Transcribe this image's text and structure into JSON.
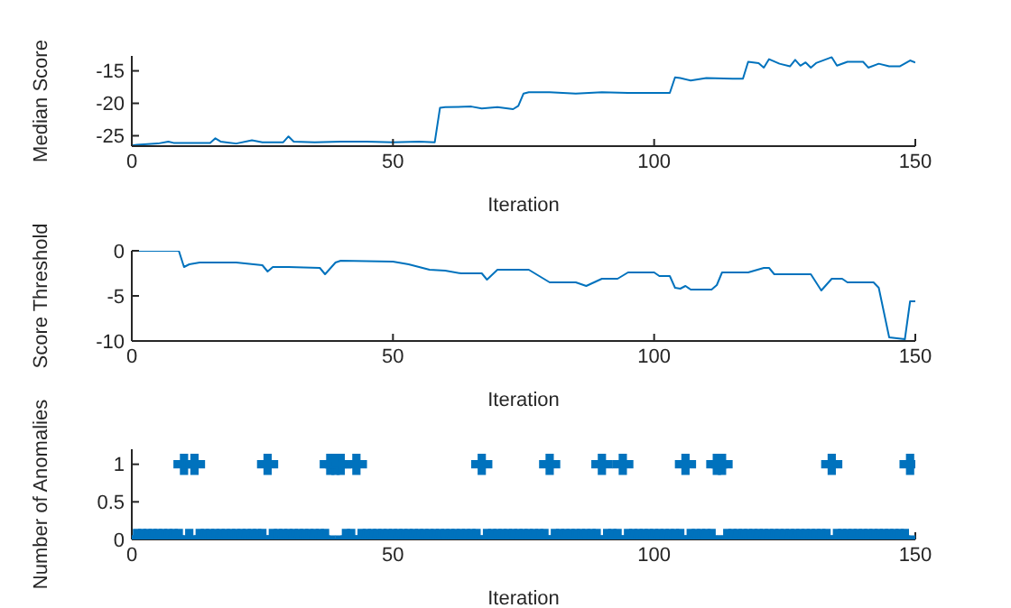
{
  "chart_data": [
    {
      "type": "line",
      "xlabel": "Iteration",
      "ylabel": "Median Score",
      "xlim": [
        0,
        150
      ],
      "xticks": [
        0,
        50,
        100,
        150
      ],
      "ylim": [
        -26.6,
        -12.7
      ],
      "yticks": [
        -25,
        -20,
        -15
      ],
      "series": [
        {
          "color": "#0072bd",
          "x": [
            0,
            1,
            5,
            7,
            8,
            15,
            16,
            17,
            20,
            23,
            25,
            29,
            30,
            31,
            35,
            40,
            45,
            50,
            55,
            58,
            59,
            60,
            65,
            67,
            70,
            73,
            74,
            75,
            76,
            80,
            85,
            90,
            95,
            100,
            103,
            104,
            105,
            107,
            110,
            115,
            117,
            118,
            120,
            121,
            122,
            124,
            126,
            127,
            128,
            129,
            130,
            131,
            134,
            135,
            137,
            140,
            141,
            143,
            145,
            147,
            149,
            150
          ],
          "values": [
            -26.5,
            -26.4,
            -26.2,
            -25.9,
            -26.1,
            -26.1,
            -25.4,
            -25.9,
            -26.2,
            -25.7,
            -26.0,
            -26.0,
            -25.1,
            -25.9,
            -26.0,
            -25.9,
            -25.9,
            -26.0,
            -25.9,
            -26.0,
            -20.7,
            -20.6,
            -20.5,
            -20.8,
            -20.6,
            -20.9,
            -20.4,
            -18.5,
            -18.3,
            -18.3,
            -18.5,
            -18.3,
            -18.4,
            -18.4,
            -18.4,
            -16.0,
            -16.1,
            -16.5,
            -16.1,
            -16.2,
            -16.2,
            -13.6,
            -13.8,
            -14.5,
            -13.2,
            -13.9,
            -14.3,
            -13.3,
            -14.2,
            -13.7,
            -14.5,
            -13.8,
            -12.9,
            -14.2,
            -13.6,
            -13.6,
            -14.5,
            -13.9,
            -14.3,
            -14.3,
            -13.4,
            -13.7
          ]
        }
      ]
    },
    {
      "type": "line",
      "xlabel": "Iteration",
      "ylabel": "Score Threshold",
      "xlim": [
        0,
        150
      ],
      "xticks": [
        0,
        50,
        100,
        150
      ],
      "ylim": [
        -10,
        0
      ],
      "yticks": [
        -10,
        -5,
        0
      ],
      "series": [
        {
          "color": "#0072bd",
          "x": [
            0,
            9,
            10,
            11,
            13,
            20,
            25,
            26,
            27,
            30,
            36,
            37,
            39,
            40,
            50,
            53,
            57,
            60,
            63,
            67,
            68,
            70,
            76,
            78,
            80,
            85,
            87,
            90,
            93,
            95,
            100,
            101,
            103,
            104,
            105,
            106,
            107,
            111,
            112,
            113,
            118,
            121,
            122,
            123,
            130,
            132,
            134,
            136,
            137,
            142,
            143,
            145,
            148,
            149,
            150
          ],
          "values": [
            0,
            0,
            -1.8,
            -1.5,
            -1.3,
            -1.3,
            -1.6,
            -2.3,
            -1.8,
            -1.8,
            -1.9,
            -2.6,
            -1.3,
            -1.1,
            -1.2,
            -1.5,
            -2.1,
            -2.2,
            -2.5,
            -2.5,
            -3.2,
            -2.1,
            -2.1,
            -2.8,
            -3.5,
            -3.5,
            -3.9,
            -3.1,
            -3.1,
            -2.4,
            -2.4,
            -2.8,
            -2.8,
            -4.1,
            -4.2,
            -3.9,
            -4.3,
            -4.3,
            -3.8,
            -2.4,
            -2.4,
            -1.9,
            -1.9,
            -2.6,
            -2.6,
            -4.4,
            -3.1,
            -3.1,
            -3.5,
            -3.5,
            -4.1,
            -9.6,
            -9.8,
            -5.6,
            -5.6
          ]
        }
      ]
    },
    {
      "type": "scatter",
      "marker": "cross",
      "xlabel": "Iteration",
      "ylabel": "Number of Anomalies",
      "xlim": [
        0,
        150
      ],
      "xticks": [
        0,
        50,
        100,
        150
      ],
      "ylim": [
        0,
        1.2
      ],
      "yticks": [
        0,
        0.5,
        1
      ],
      "series": [
        {
          "color": "#0072bd",
          "x": [
            1,
            2,
            3,
            4,
            5,
            6,
            7,
            8,
            9,
            10,
            11,
            12,
            13,
            14,
            15,
            16,
            17,
            18,
            19,
            20,
            21,
            22,
            23,
            24,
            25,
            26,
            27,
            28,
            29,
            30,
            31,
            32,
            33,
            34,
            35,
            36,
            37,
            38,
            39,
            40,
            41,
            42,
            43,
            44,
            45,
            46,
            47,
            48,
            49,
            50,
            51,
            52,
            53,
            54,
            55,
            56,
            57,
            58,
            59,
            60,
            61,
            62,
            63,
            64,
            65,
            66,
            67,
            68,
            69,
            70,
            71,
            72,
            73,
            74,
            75,
            76,
            77,
            78,
            79,
            80,
            81,
            82,
            83,
            84,
            85,
            86,
            87,
            88,
            89,
            90,
            91,
            92,
            93,
            94,
            95,
            96,
            97,
            98,
            99,
            100,
            101,
            102,
            103,
            104,
            105,
            106,
            107,
            108,
            109,
            110,
            111,
            112,
            113,
            114,
            115,
            116,
            117,
            118,
            119,
            120,
            121,
            122,
            123,
            124,
            125,
            126,
            127,
            128,
            129,
            130,
            131,
            132,
            133,
            134,
            135,
            136,
            137,
            138,
            139,
            140,
            141,
            142,
            143,
            144,
            145,
            146,
            147,
            148,
            149
          ],
          "values": [
            0,
            0,
            0,
            0,
            0,
            0,
            0,
            0,
            0,
            1,
            0,
            1,
            0,
            0,
            0,
            0,
            0,
            0,
            0,
            0,
            0,
            0,
            0,
            0,
            0,
            1,
            0,
            0,
            0,
            0,
            0,
            0,
            0,
            0,
            0,
            0,
            0,
            1,
            1,
            1,
            0,
            0,
            1,
            0,
            0,
            0,
            0,
            0,
            0,
            0,
            0,
            0,
            0,
            0,
            0,
            0,
            0,
            0,
            0,
            0,
            0,
            0,
            0,
            0,
            0,
            0,
            1,
            0,
            0,
            0,
            0,
            0,
            0,
            0,
            0,
            0,
            0,
            0,
            0,
            1,
            0,
            0,
            0,
            0,
            0,
            0,
            0,
            0,
            0,
            1,
            0,
            0,
            0,
            1,
            0,
            0,
            0,
            0,
            0,
            0,
            0,
            0,
            0,
            0,
            0,
            1,
            0,
            0,
            0,
            0,
            0,
            1,
            1,
            0,
            0,
            0,
            0,
            0,
            0,
            0,
            0,
            0,
            0,
            0,
            0,
            0,
            0,
            0,
            0,
            0,
            0,
            0,
            0,
            1,
            0,
            0,
            0,
            0,
            0,
            0,
            0,
            0,
            0,
            0,
            0,
            0,
            0,
            0,
            1
          ]
        }
      ]
    }
  ]
}
